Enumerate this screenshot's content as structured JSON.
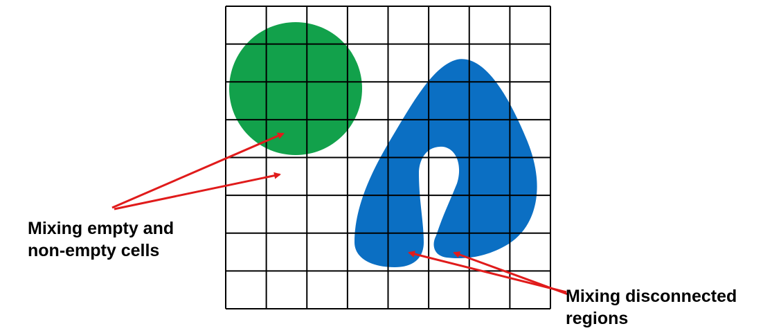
{
  "colors": {
    "grid_line": "#000000",
    "circle_fill": "#12a14b",
    "blob_fill": "#0b6fc3",
    "arrow": "#e01b1b",
    "background": "#ffffff"
  },
  "annotations": {
    "left": {
      "line1": "Mixing empty and",
      "line2": "non-empty cells"
    },
    "right": {
      "line1": "Mixing disconnected",
      "line2": "regions"
    }
  }
}
